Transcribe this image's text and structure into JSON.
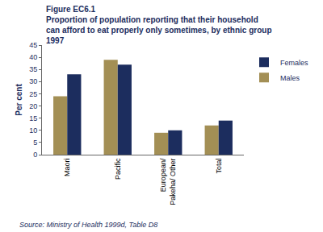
{
  "chart_data": {
    "type": "bar",
    "title": "Figure EC6.1",
    "subtitle": "Proportion of population reporting that their household can afford to eat properly only sometimes, by ethnic group 1997",
    "y_label": "Per cent",
    "source": "Source: Ministry of Health 1999d, Table D8",
    "categories": [
      "Maori",
      "Pacific",
      "European/ Pakeha/ Other",
      "Total"
    ],
    "series": [
      {
        "name": "Males",
        "color": "#a38f55",
        "values": [
          24,
          39,
          9,
          12
        ]
      },
      {
        "name": "Females",
        "color": "#1c2d5e",
        "values": [
          33,
          37,
          10,
          14
        ]
      }
    ],
    "ylim": [
      0,
      45
    ],
    "yticks": [
      0,
      5,
      10,
      15,
      20,
      25,
      30,
      35,
      40,
      45
    ],
    "grid": false,
    "legend": "right"
  }
}
